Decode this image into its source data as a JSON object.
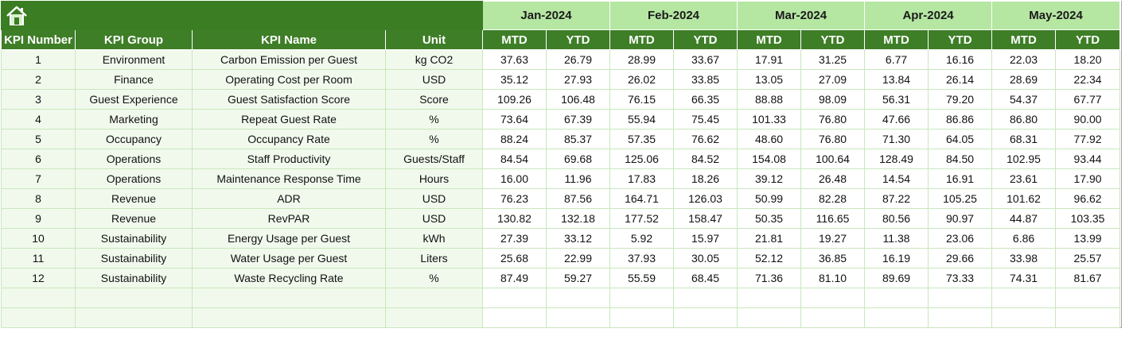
{
  "table": {
    "months": [
      "Jan-2024",
      "Feb-2024",
      "Mar-2024",
      "Apr-2024",
      "May-2024"
    ],
    "period_headers": [
      "MTD",
      "YTD"
    ],
    "columns": [
      "KPI Number",
      "KPI Group",
      "KPI Name",
      "Unit"
    ],
    "rows": [
      [
        "1",
        "Environment",
        "Carbon Emission per Guest",
        "kg CO2",
        "37.63",
        "26.79",
        "28.99",
        "33.67",
        "17.91",
        "31.25",
        "6.77",
        "16.16",
        "22.03",
        "18.20"
      ],
      [
        "2",
        "Finance",
        "Operating Cost per Room",
        "USD",
        "35.12",
        "27.93",
        "26.02",
        "33.85",
        "13.05",
        "27.09",
        "13.84",
        "26.14",
        "28.69",
        "22.34"
      ],
      [
        "3",
        "Guest Experience",
        "Guest Satisfaction Score",
        "Score",
        "109.26",
        "106.48",
        "76.15",
        "66.35",
        "88.88",
        "98.09",
        "56.31",
        "79.20",
        "54.37",
        "67.77"
      ],
      [
        "4",
        "Marketing",
        "Repeat Guest Rate",
        "%",
        "73.64",
        "67.39",
        "55.94",
        "75.45",
        "101.33",
        "76.80",
        "47.66",
        "86.86",
        "86.80",
        "90.00"
      ],
      [
        "5",
        "Occupancy",
        "Occupancy Rate",
        "%",
        "88.24",
        "85.37",
        "57.35",
        "76.62",
        "48.60",
        "76.80",
        "71.30",
        "64.05",
        "68.31",
        "77.92"
      ],
      [
        "6",
        "Operations",
        "Staff Productivity",
        "Guests/Staff",
        "84.54",
        "69.68",
        "125.06",
        "84.52",
        "154.08",
        "100.64",
        "128.49",
        "84.50",
        "102.95",
        "93.44"
      ],
      [
        "7",
        "Operations",
        "Maintenance Response Time",
        "Hours",
        "16.00",
        "11.96",
        "17.83",
        "18.26",
        "39.12",
        "26.48",
        "14.54",
        "16.91",
        "23.61",
        "17.90"
      ],
      [
        "8",
        "Revenue",
        "ADR",
        "USD",
        "76.23",
        "87.56",
        "164.71",
        "126.03",
        "50.99",
        "82.28",
        "87.22",
        "105.25",
        "101.62",
        "96.62"
      ],
      [
        "9",
        "Revenue",
        "RevPAR",
        "USD",
        "130.82",
        "132.18",
        "177.52",
        "158.47",
        "50.35",
        "116.65",
        "80.56",
        "90.97",
        "44.87",
        "103.35"
      ],
      [
        "10",
        "Sustainability",
        "Energy Usage per Guest",
        "kWh",
        "27.39",
        "33.12",
        "5.92",
        "15.97",
        "21.81",
        "19.27",
        "11.38",
        "23.06",
        "6.86",
        "13.99"
      ],
      [
        "11",
        "Sustainability",
        "Water Usage per Guest",
        "Liters",
        "25.68",
        "22.99",
        "37.93",
        "30.05",
        "52.12",
        "36.85",
        "16.19",
        "29.66",
        "33.98",
        "25.57"
      ],
      [
        "12",
        "Sustainability",
        "Waste Recycling Rate",
        "%",
        "87.49",
        "59.27",
        "55.59",
        "68.45",
        "71.36",
        "81.10",
        "89.69",
        "73.33",
        "74.31",
        "81.67"
      ]
    ]
  }
}
